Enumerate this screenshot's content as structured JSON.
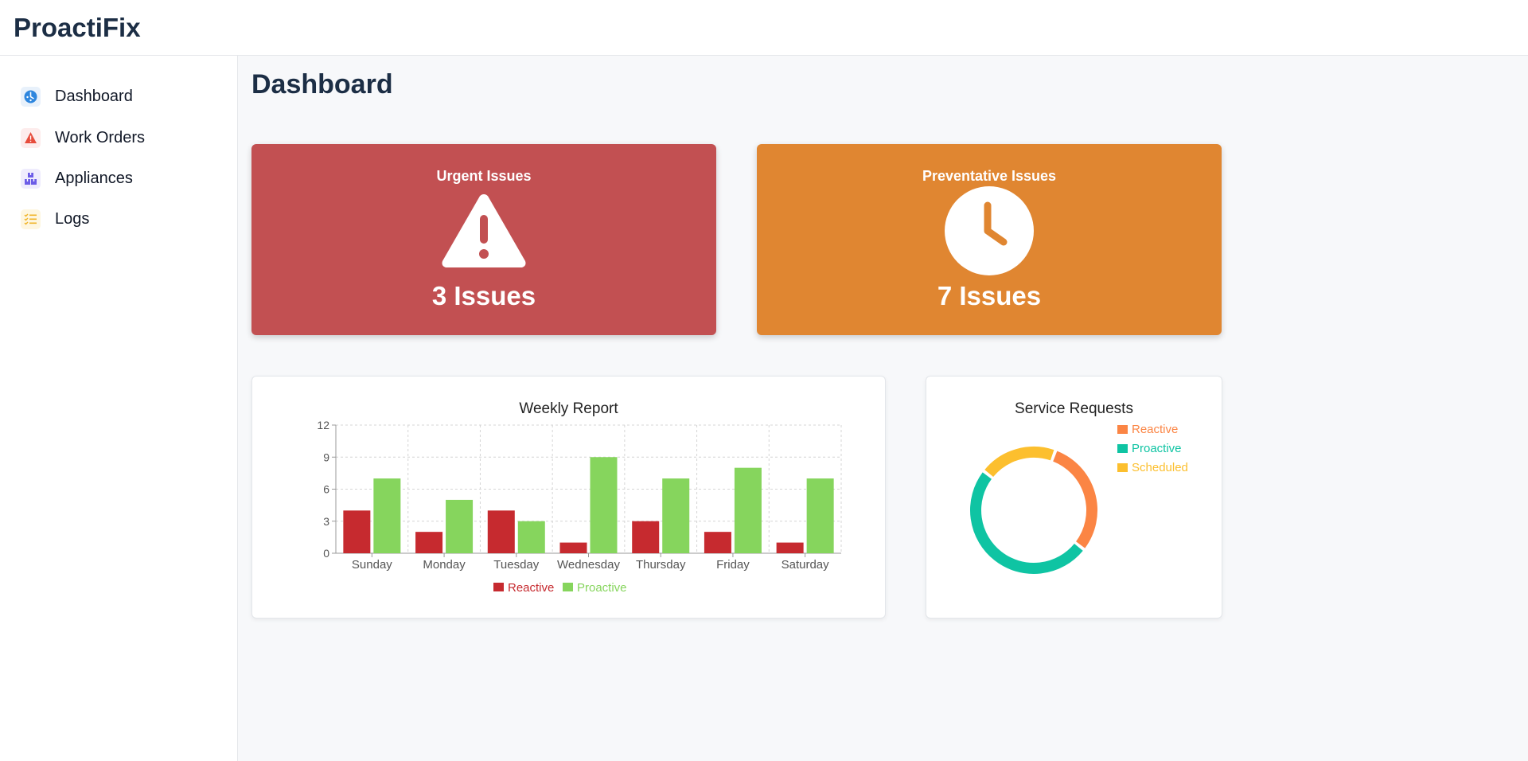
{
  "app": {
    "title": "ProactiFix"
  },
  "sidebar": {
    "items": [
      {
        "label": "Dashboard",
        "icon": "dashboard-icon",
        "color": "#2e86de"
      },
      {
        "label": "Work Orders",
        "icon": "warning-icon",
        "color": "#e74c3c"
      },
      {
        "label": "Appliances",
        "icon": "boxes-icon",
        "color": "#6c5ce7"
      },
      {
        "label": "Logs",
        "icon": "checklist-icon",
        "color": "#f0b429"
      }
    ]
  },
  "page": {
    "title": "Dashboard"
  },
  "cards": {
    "urgent": {
      "title": "Urgent Issues",
      "value": "3 Issues",
      "color": "#c25052",
      "icon": "warning-triangle-icon"
    },
    "preventative": {
      "title": "Preventative Issues",
      "value": "7 Issues",
      "color": "#e08631",
      "icon": "clock-icon"
    }
  },
  "weekly": {
    "title": "Weekly Report"
  },
  "service": {
    "title": "Service Requests"
  },
  "chart_data": [
    {
      "type": "bar",
      "title": "Weekly Report",
      "categories": [
        "Sunday",
        "Monday",
        "Tuesday",
        "Wednesday",
        "Thursday",
        "Friday",
        "Saturday"
      ],
      "series": [
        {
          "name": "Reactive",
          "color": "#c62a2f",
          "values": [
            4,
            2,
            4,
            1,
            3,
            2,
            1
          ]
        },
        {
          "name": "Proactive",
          "color": "#86d55d",
          "values": [
            7,
            5,
            3,
            9,
            7,
            8,
            7
          ]
        }
      ],
      "yticks": [
        0,
        3,
        6,
        9,
        12
      ],
      "ylim": [
        0,
        12
      ],
      "grid": true,
      "legend": "bottom"
    },
    {
      "type": "pie",
      "title": "Service Requests",
      "donut": true,
      "labels": [
        "Reactive",
        "Proactive",
        "Scheduled"
      ],
      "values": [
        30,
        50,
        20
      ],
      "colors": [
        "#fb8544",
        "#0fc4a3",
        "#fcbf2e"
      ],
      "legend": "top-right"
    }
  ]
}
